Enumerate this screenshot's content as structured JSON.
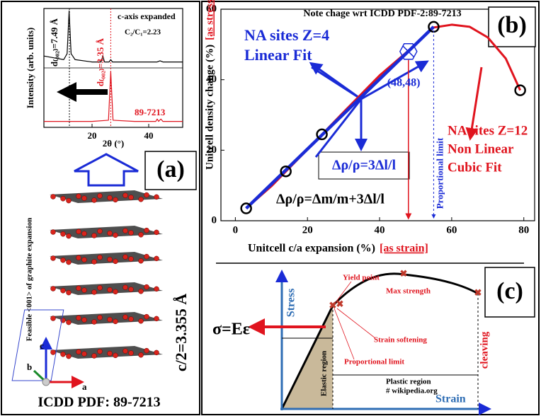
{
  "chart_data": [
    {
      "type": "line",
      "xlabel": "2θ (°)",
      "ylabel": "Intensity (arb. units)",
      "xlim": [
        3,
        52
      ],
      "xticks": [
        20,
        40
      ],
      "ylim": [
        0,
        1
      ],
      "series": [
        {
          "color": "#000000",
          "x": [
            3,
            10,
            11.2,
            11.9,
            12.6,
            14,
            20,
            23.2,
            23.8,
            24.4,
            26,
            26.6,
            27.2,
            35,
            43,
            44,
            45,
            52
          ],
          "values": [
            0.6,
            0.57,
            0.62,
            0.98,
            0.62,
            0.57,
            0.55,
            0.55,
            0.6,
            0.55,
            0.55,
            0.57,
            0.55,
            0.55,
            0.55,
            0.56,
            0.55,
            0.55
          ]
        },
        {
          "color": "#e0141e",
          "x": [
            3,
            20,
            25.8,
            26.6,
            27.4,
            35,
            42.5,
            43,
            43.5,
            44.3,
            45,
            52
          ],
          "values": [
            0.05,
            0.05,
            0.06,
            0.47,
            0.06,
            0.05,
            0.05,
            0.07,
            0.05,
            0.07,
            0.05,
            0.05
          ]
        }
      ],
      "reference_lines": [
        {
          "x": 12,
          "color": "#000000"
        },
        {
          "x": 26.6,
          "color": "#e0141e"
        }
      ],
      "annotations": [
        "c-axis expanded",
        "C₂/C₁=2.23",
        "d₍₀₀₂₎=7.49 Å",
        "d₍₀₀₂₎=3.35 Å",
        "89-7213"
      ]
    },
    {
      "type": "line",
      "panel_label": "(b)",
      "title": "Note chage wrt ICDD PDF-2:89-7213",
      "xlabel": "Unitcell c/a expansion (%)",
      "xlabel_note": "[as strain]",
      "ylabel": "Unitcell density change (%)",
      "ylabel_note": "[as stress]",
      "xlim": [
        -4,
        83
      ],
      "xticks": [
        0,
        20,
        40,
        60,
        80
      ],
      "ylim": [
        0,
        60
      ],
      "yticks": [
        0,
        20,
        40,
        60
      ],
      "grid": false,
      "series": [
        {
          "name": "Cubic Fit",
          "color": "#e0141e",
          "x": [
            3,
            10,
            20,
            30,
            40,
            50,
            55,
            60,
            65,
            70,
            75,
            79
          ],
          "values": [
            3.5,
            9.8,
            20.2,
            30.8,
            41.2,
            50,
            54.8,
            55.6,
            55,
            52,
            46,
            37
          ]
        },
        {
          "name": "Linear Fit",
          "color": "#1a2bd6",
          "x": [
            3,
            55
          ],
          "values": [
            3.5,
            55
          ]
        }
      ],
      "points": {
        "x": [
          3,
          14,
          24,
          55,
          79
        ],
        "values": [
          3.5,
          14,
          24.5,
          55,
          37
        ]
      },
      "marker_point": {
        "x": 48,
        "y": 48,
        "label": "(48,48)"
      },
      "proportional_limit": {
        "x": 55,
        "label": "Proportional limit"
      },
      "annotations": [
        "NA sites Z=4",
        "Δρ/ρ=3Δl/l",
        "Δρ/ρ=Δm/m+3Δl/l",
        "NA sites Z=12",
        "Non Linear"
      ]
    }
  ],
  "panel_a": {
    "label": "(a)",
    "caption": "Feasible <001> of graphite expansion",
    "spacing": "c/2=3.355 Å",
    "source": "ICDD PDF: 89-7213",
    "axes": [
      "a",
      "b",
      "c"
    ]
  },
  "panel_c": {
    "label": "(c)",
    "y_axis": "Stress",
    "x_axis": "Strain",
    "law": "σ=Eε",
    "notes": [
      "Yield point",
      "Max strength",
      "Strain softening",
      "Proportional  limit",
      "Elastic region",
      "Plastic region",
      "# wikipedia.org",
      "cleaving"
    ]
  }
}
